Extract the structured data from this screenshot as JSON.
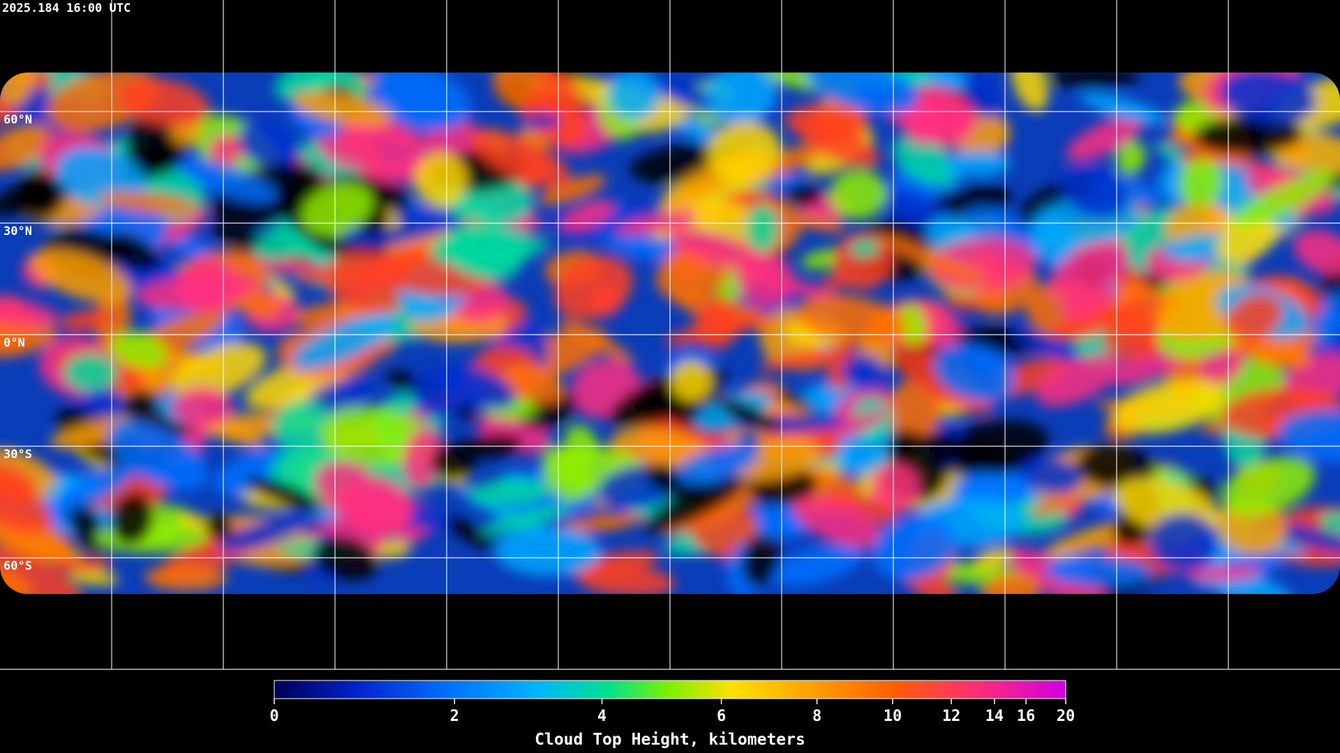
{
  "timestamp": "2025.184 16:00 UTC",
  "map": {
    "latitude_labels": [
      "60°N",
      "30°N",
      "0°N",
      "30°S",
      "60°S"
    ]
  },
  "colorbar": {
    "title": "Cloud Top Height, kilometers",
    "lim": [
      0,
      20
    ],
    "ticks": [
      0,
      2,
      4,
      6,
      8,
      10,
      12,
      14,
      16,
      20
    ]
  }
}
